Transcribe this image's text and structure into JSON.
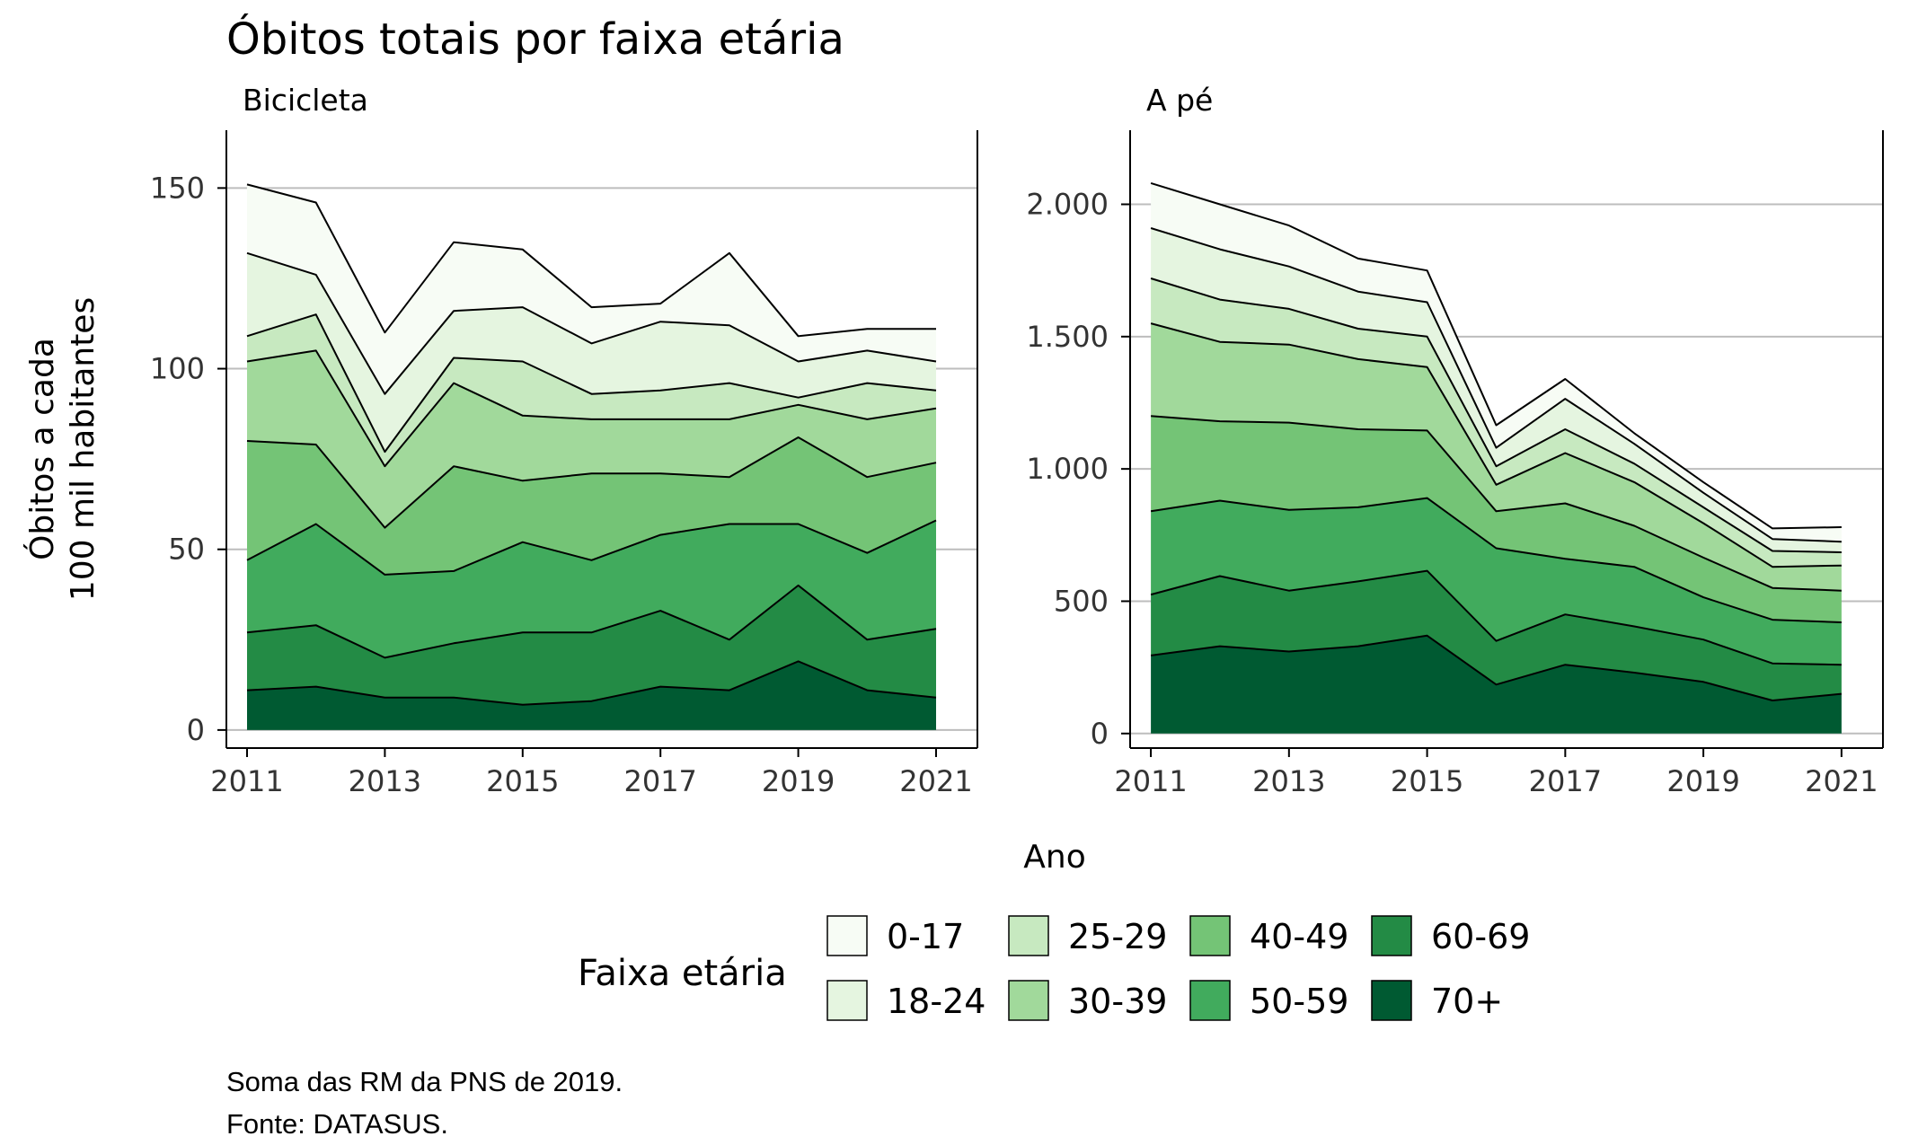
{
  "title": "Óbitos totais por faixa etária",
  "caption_lines": [
    "Soma das RM da PNS de 2019.",
    "Fonte: DATASUS."
  ],
  "xlabel": "Ano",
  "ylabel_lines": [
    "Óbitos a cada",
    "100 mil habitantes"
  ],
  "legend": {
    "title": "Faixa etária",
    "items": [
      {
        "label": "0-17",
        "color": "#f7fcf5"
      },
      {
        "label": "18-24",
        "color": "#e5f5e0"
      },
      {
        "label": "25-29",
        "color": "#c7e9c0"
      },
      {
        "label": "30-39",
        "color": "#a1d99b"
      },
      {
        "label": "40-49",
        "color": "#74c476"
      },
      {
        "label": "50-59",
        "color": "#41ab5d"
      },
      {
        "label": "60-69",
        "color": "#238b45"
      },
      {
        "label": "70+",
        "color": "#005a32"
      }
    ]
  },
  "chart_data": [
    {
      "type": "area",
      "stacked": true,
      "panel": "Bicicleta",
      "x": [
        2011,
        2012,
        2013,
        2014,
        2015,
        2016,
        2017,
        2018,
        2019,
        2020,
        2021
      ],
      "xticks": [
        2011,
        2013,
        2015,
        2017,
        2019,
        2021
      ],
      "xlim": [
        2010.7,
        2021.6
      ],
      "ylim": [
        -5,
        166
      ],
      "yticks": [
        0,
        50,
        100,
        150
      ],
      "ytick_labels": [
        "0",
        "50",
        "100",
        "150"
      ],
      "grid": "horizontal",
      "series": [
        {
          "name": "70+",
          "values": [
            11,
            12,
            9,
            9,
            7,
            8,
            12,
            11,
            19,
            11,
            9
          ]
        },
        {
          "name": "60-69",
          "values": [
            16,
            17,
            11,
            15,
            20,
            19,
            21,
            14,
            21,
            14,
            19
          ]
        },
        {
          "name": "50-59",
          "values": [
            20,
            28,
            23,
            20,
            25,
            20,
            21,
            32,
            17,
            24,
            30
          ]
        },
        {
          "name": "40-49",
          "values": [
            33,
            22,
            13,
            29,
            17,
            24,
            17,
            13,
            24,
            21,
            16
          ]
        },
        {
          "name": "30-39",
          "values": [
            22,
            26,
            17,
            23,
            18,
            15,
            15,
            16,
            9,
            16,
            15
          ]
        },
        {
          "name": "25-29",
          "values": [
            7,
            10,
            4,
            7,
            15,
            7,
            8,
            10,
            2,
            10,
            5
          ]
        },
        {
          "name": "18-24",
          "values": [
            23,
            11,
            16,
            13,
            15,
            14,
            19,
            16,
            10,
            9,
            8
          ]
        },
        {
          "name": "0-17",
          "values": [
            19,
            20,
            17,
            19,
            16,
            10,
            5,
            20,
            7,
            6,
            9
          ]
        }
      ]
    },
    {
      "type": "area",
      "stacked": true,
      "panel": "A pé",
      "x": [
        2011,
        2012,
        2013,
        2014,
        2015,
        2016,
        2017,
        2018,
        2019,
        2020,
        2021
      ],
      "xticks": [
        2011,
        2013,
        2015,
        2017,
        2019,
        2021
      ],
      "xlim": [
        2010.7,
        2021.6
      ],
      "ylim": [
        -55,
        2280
      ],
      "yticks": [
        0,
        500,
        1000,
        1500,
        2000
      ],
      "ytick_labels": [
        "0",
        "500",
        "1.000",
        "1.500",
        "2.000"
      ],
      "grid": "horizontal",
      "series": [
        {
          "name": "70+",
          "values": [
            295,
            330,
            310,
            330,
            370,
            185,
            260,
            230,
            195,
            125,
            150
          ]
        },
        {
          "name": "60-69",
          "values": [
            230,
            265,
            230,
            245,
            245,
            165,
            190,
            175,
            160,
            140,
            110
          ]
        },
        {
          "name": "50-59",
          "values": [
            315,
            285,
            305,
            280,
            275,
            350,
            210,
            225,
            160,
            165,
            160
          ]
        },
        {
          "name": "40-49",
          "values": [
            360,
            300,
            330,
            295,
            255,
            140,
            210,
            155,
            150,
            120,
            120
          ]
        },
        {
          "name": "30-39",
          "values": [
            350,
            300,
            295,
            265,
            240,
            100,
            190,
            165,
            130,
            80,
            95
          ]
        },
        {
          "name": "25-29",
          "values": [
            170,
            160,
            135,
            115,
            115,
            70,
            90,
            70,
            60,
            60,
            50
          ]
        },
        {
          "name": "18-24",
          "values": [
            190,
            190,
            160,
            140,
            130,
            70,
            115,
            75,
            55,
            45,
            40
          ]
        },
        {
          "name": "0-17",
          "values": [
            170,
            170,
            155,
            125,
            120,
            85,
            75,
            40,
            40,
            40,
            55
          ]
        }
      ]
    }
  ]
}
